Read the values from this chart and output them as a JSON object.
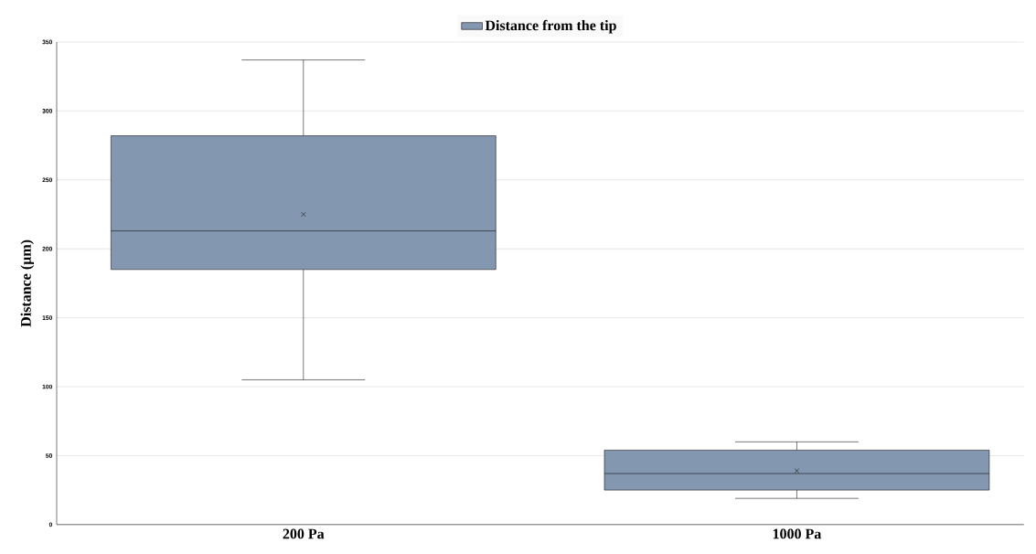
{
  "chart_data": {
    "type": "box",
    "categories": [
      "200 Pa",
      "1000 Pa"
    ],
    "ylabel": "Distance (µm)",
    "ylim": [
      0,
      350
    ],
    "yticks": [
      0,
      50,
      100,
      150,
      200,
      250,
      300,
      350
    ],
    "grid": "y",
    "legend": "top",
    "marker": "cross",
    "series": [
      {
        "name": "Distance from the tip",
        "color": "#8497b0",
        "boxes": [
          {
            "low": 105,
            "q1": 185,
            "median": 213,
            "q3": 282,
            "high": 337,
            "mean": 225
          },
          {
            "low": 19,
            "q1": 25,
            "median": 37,
            "q3": 54,
            "high": 60,
            "mean": 39
          }
        ]
      }
    ]
  }
}
